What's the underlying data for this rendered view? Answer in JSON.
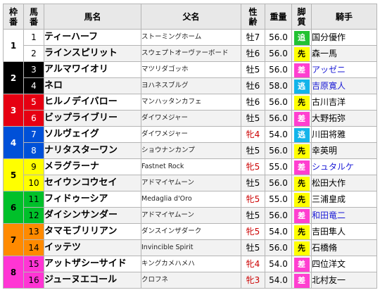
{
  "headers": {
    "waku": "枠番",
    "uma": "馬番",
    "name": "馬名",
    "sire": "父名",
    "sex": "性齢",
    "weight": "重量",
    "style": "脚質",
    "jockey": "騎手"
  },
  "waku_colors": {
    "1": "#ffffff",
    "2": "#000000",
    "3": "#e60012",
    "4": "#0050d8",
    "5": "#ffff00",
    "6": "#00c02a",
    "7": "#ff8a00",
    "8": "#ff35d4"
  },
  "style_colors": {
    "追": "#22c232",
    "先": "#ffff00",
    "差": "#ff3fd0",
    "逃": "#13b4ea"
  },
  "rows": [
    {
      "waku": "1",
      "uma": "1",
      "name": "ティーハーフ",
      "sire": "ストーミングホーム",
      "sex": "牡7",
      "weight": "56.0",
      "style": "追",
      "jockey": "国分優作",
      "sex_red": false,
      "jockey_blue": false
    },
    {
      "waku": "1",
      "uma": "2",
      "name": "ラインスピリット",
      "sire": "スウェプトオーヴァーボード",
      "sex": "牡6",
      "weight": "56.0",
      "style": "先",
      "jockey": "森一馬",
      "sex_red": false,
      "jockey_blue": false
    },
    {
      "waku": "2",
      "uma": "3",
      "name": "アルマワイオリ",
      "sire": "マツリダゴッホ",
      "sex": "牡5",
      "weight": "56.0",
      "style": "差",
      "jockey": "アッゼニ",
      "sex_red": false,
      "jockey_blue": true
    },
    {
      "waku": "2",
      "uma": "4",
      "name": "ネロ",
      "sire": "ヨハネスブルグ",
      "sex": "牡6",
      "weight": "58.0",
      "style": "逃",
      "jockey": "吉原寛人",
      "sex_red": false,
      "jockey_blue": true
    },
    {
      "waku": "3",
      "uma": "5",
      "name": "ヒルノデイバロー",
      "sire": "マンハッタンカフェ",
      "sex": "牡6",
      "weight": "56.0",
      "style": "先",
      "jockey": "古川吉洋",
      "sex_red": false,
      "jockey_blue": false
    },
    {
      "waku": "3",
      "uma": "6",
      "name": "ビップライブリー",
      "sire": "ダイワメジャー",
      "sex": "牡5",
      "weight": "56.0",
      "style": "差",
      "jockey": "大野拓弥",
      "sex_red": false,
      "jockey_blue": false
    },
    {
      "waku": "4",
      "uma": "7",
      "name": "ソルヴェイグ",
      "sire": "ダイワメジャー",
      "sex": "牝4",
      "weight": "54.0",
      "style": "逃",
      "jockey": "川田将雅",
      "sex_red": true,
      "jockey_blue": false
    },
    {
      "waku": "4",
      "uma": "8",
      "name": "ナリタスターワン",
      "sire": "ショウナンカンプ",
      "sex": "牡5",
      "weight": "56.0",
      "style": "先",
      "jockey": "幸英明",
      "sex_red": false,
      "jockey_blue": false
    },
    {
      "waku": "5",
      "uma": "9",
      "name": "メラグラーナ",
      "sire": "Fastnet Rock",
      "sex": "牝5",
      "weight": "55.0",
      "style": "差",
      "jockey": "シュタルケ",
      "sex_red": true,
      "jockey_blue": true
    },
    {
      "waku": "5",
      "uma": "10",
      "name": "セイウンコウセイ",
      "sire": "アドマイヤムーン",
      "sex": "牡5",
      "weight": "56.0",
      "style": "先",
      "jockey": "松田大作",
      "sex_red": false,
      "jockey_blue": false
    },
    {
      "waku": "6",
      "uma": "11",
      "name": "フィドゥーシア",
      "sire": "Medaglia d'Oro",
      "sex": "牝5",
      "weight": "55.0",
      "style": "先",
      "jockey": "三浦皇成",
      "sex_red": true,
      "jockey_blue": false
    },
    {
      "waku": "6",
      "uma": "12",
      "name": "ダイシンサンダー",
      "sire": "アドマイヤムーン",
      "sex": "牡5",
      "weight": "56.0",
      "style": "差",
      "jockey": "和田竜二",
      "sex_red": false,
      "jockey_blue": true
    },
    {
      "waku": "7",
      "uma": "13",
      "name": "タマモブリリアン",
      "sire": "ダンスインザダーク",
      "sex": "牝5",
      "weight": "54.0",
      "style": "先",
      "jockey": "吉田隼人",
      "sex_red": true,
      "jockey_blue": false
    },
    {
      "waku": "7",
      "uma": "14",
      "name": "イッテツ",
      "sire": "Invincible Spirit",
      "sex": "牡5",
      "weight": "56.0",
      "style": "先",
      "jockey": "石橋脩",
      "sex_red": false,
      "jockey_blue": false
    },
    {
      "waku": "8",
      "uma": "15",
      "name": "アットザシーサイド",
      "sire": "キングカメハメハ",
      "sex": "牝4",
      "weight": "54.0",
      "style": "差",
      "jockey": "四位洋文",
      "sex_red": true,
      "jockey_blue": false
    },
    {
      "waku": "8",
      "uma": "16",
      "name": "ジューヌエコール",
      "sire": "クロフネ",
      "sex": "牝3",
      "weight": "54.0",
      "style": "差",
      "jockey": "北村友一",
      "sex_red": true,
      "jockey_blue": false
    }
  ]
}
